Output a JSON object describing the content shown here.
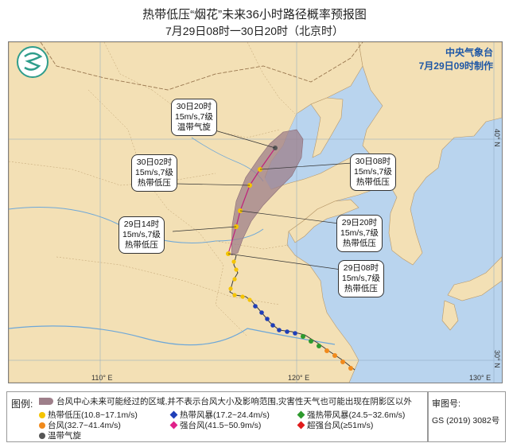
{
  "header": {
    "title": "热带低压“烟花”未来36小时路径概率预报图",
    "subtitle": "7月29日08时一30日20时（北京时）"
  },
  "agency": {
    "name": "中央气象台",
    "made": "7月29日09时制作"
  },
  "callouts": [
    {
      "time": "30日20时",
      "wind": "15m/s,7级",
      "type": "温带气旋"
    },
    {
      "time": "30日02时",
      "wind": "15m/s,7级",
      "type": "热带低压"
    },
    {
      "time": "30日08时",
      "wind": "15m/s,7级",
      "type": "热带低压"
    },
    {
      "time": "29日14时",
      "wind": "15m/s,7级",
      "type": "热带低压"
    },
    {
      "time": "29日20时",
      "wind": "15m/s,7级",
      "type": "热带低压"
    },
    {
      "time": "29日08时",
      "wind": "15m/s,7级",
      "type": "热带低压"
    }
  ],
  "ticks": {
    "lon": [
      "110° E",
      "120° E",
      "130° E"
    ],
    "lat": [
      "40° N",
      "30° N"
    ]
  },
  "legend": {
    "title": "图例:",
    "cone": "台风中心未来可能经过的区域,并不表示台风大小及影响范围,灾害性天气也可能出现在阴影区以外",
    "items": [
      {
        "label": "热带低压(10.8~17.1m/s)",
        "color": "#f5c400"
      },
      {
        "label": "热带风暴(17.2~24.4m/s)",
        "color": "#1f3fb8"
      },
      {
        "label": "强热带风暴(24.5~32.6m/s)",
        "color": "#2e9a2e"
      },
      {
        "label": "台风(32.7~41.4m/s)",
        "color": "#f08a1c"
      },
      {
        "label": "强台风(41.5~50.9m/s)",
        "color": "#e0218a"
      },
      {
        "label": "超强台风(≥51m/s)",
        "color": "#e01b1b"
      },
      {
        "label": "温带气旋",
        "color": "#555555"
      }
    ]
  },
  "approval": {
    "label": "审图号:",
    "number": "GS (2019) 3082号"
  }
}
